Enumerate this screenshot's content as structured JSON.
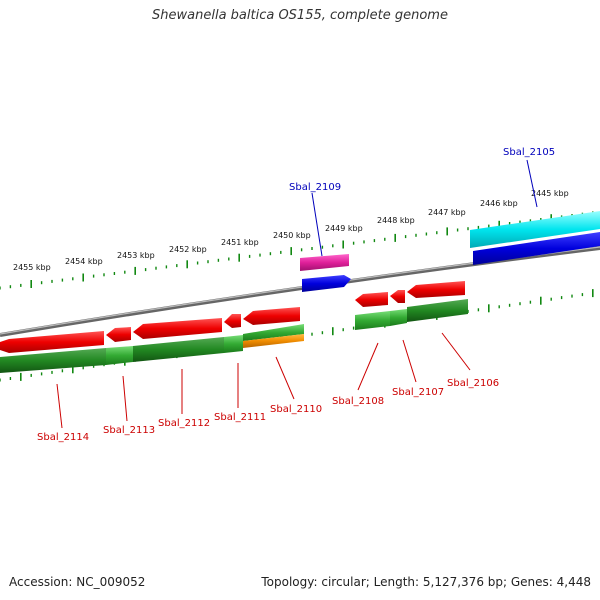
{
  "title": "Shewanella baltica OS155, complete genome",
  "footer": {
    "accession": "Accession: NC_009052",
    "summary": "Topology: circular; Length: 5,127,376 bp; Genes: 4,448"
  },
  "scale_ticks": [
    "2455 kbp",
    "2454 kbp",
    "2453 kbp",
    "2452 kbp",
    "2451 kbp",
    "2450 kbp",
    "2449 kbp",
    "2448 kbp",
    "2447 kbp",
    "2446 kbp",
    "2445 kbp"
  ],
  "genes_forward": [
    {
      "name": "Sbal_2109",
      "color": "#1a1ae0"
    },
    {
      "name": "Sbal_2105",
      "color": "#1a1ae0"
    }
  ],
  "genes_reverse": [
    {
      "name": "Sbal_2114",
      "color": "#e00000"
    },
    {
      "name": "Sbal_2113",
      "color": "#e00000"
    },
    {
      "name": "Sbal_2112",
      "color": "#e00000"
    },
    {
      "name": "Sbal_2111",
      "color": "#e00000"
    },
    {
      "name": "Sbal_2110",
      "color": "#e00000"
    },
    {
      "name": "Sbal_2108",
      "color": "#e00000"
    },
    {
      "name": "Sbal_2107",
      "color": "#e00000"
    },
    {
      "name": "Sbal_2106",
      "color": "#e00000"
    }
  ],
  "colors": {
    "cds_reverse": "#e80000",
    "cds_forward": "#0000dd",
    "cog_green": "#33aa33",
    "cog_magenta": "#e0209a",
    "cog_cyan": "#00e5ee",
    "cog_orange": "#f08c00",
    "backbone": "#888888",
    "tick": "#118811"
  }
}
